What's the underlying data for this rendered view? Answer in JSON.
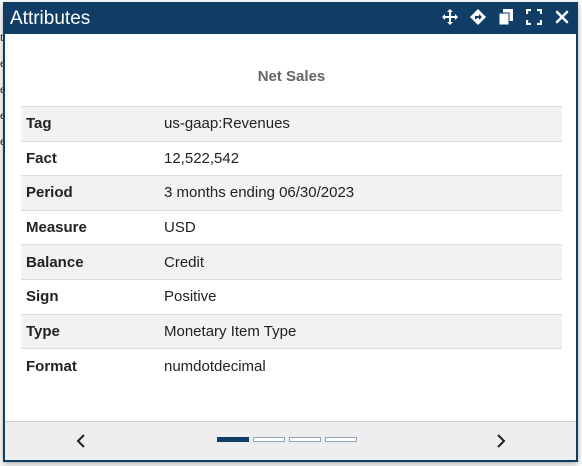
{
  "dialog": {
    "title": "Attributes",
    "toolbar_icons": [
      "move-icon",
      "navigate-icon",
      "copy-icon",
      "fullscreen-icon",
      "close-icon"
    ]
  },
  "heading": "Net Sales",
  "attributes": [
    {
      "key": "Tag",
      "value": "us-gaap:Revenues"
    },
    {
      "key": "Fact",
      "value": "12,522,542"
    },
    {
      "key": "Period",
      "value": "3 months ending 06/30/2023"
    },
    {
      "key": "Measure",
      "value": "USD"
    },
    {
      "key": "Balance",
      "value": "Credit"
    },
    {
      "key": "Sign",
      "value": "Positive"
    },
    {
      "key": "Type",
      "value": "Monetary Item Type"
    },
    {
      "key": "Format",
      "value": "numdotdecimal"
    }
  ],
  "pager": {
    "pages": 4,
    "active": 1
  },
  "colors": {
    "titlebar": "#0f3d66",
    "row_alt": "#f2f2f2",
    "footer": "#eeeeee"
  }
}
